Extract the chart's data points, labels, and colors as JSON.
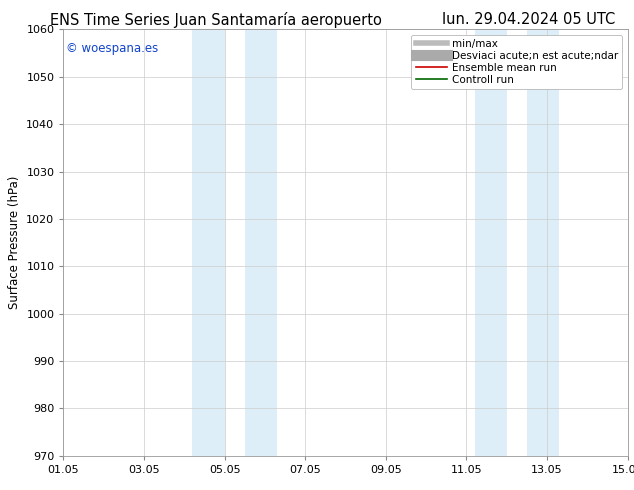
{
  "title_left": "ENS Time Series Juan Santamaría aeropuerto",
  "title_right": "lun. 29.04.2024 05 UTC",
  "ylabel": "Surface Pressure (hPa)",
  "ylim": [
    970,
    1060
  ],
  "yticks": [
    970,
    980,
    990,
    1000,
    1010,
    1020,
    1030,
    1040,
    1050,
    1060
  ],
  "xlim": [
    0,
    14
  ],
  "xtick_labels": [
    "01.05",
    "03.05",
    "05.05",
    "07.05",
    "09.05",
    "11.05",
    "13.05",
    "15.05"
  ],
  "xtick_positions": [
    0,
    2,
    4,
    6,
    8,
    10,
    12,
    14
  ],
  "shaded_regions": [
    {
      "xmin": 3.2,
      "xmax": 4.0,
      "color": "#ddeef8"
    },
    {
      "xmin": 4.5,
      "xmax": 5.3,
      "color": "#ddeef8"
    },
    {
      "xmin": 10.2,
      "xmax": 11.0,
      "color": "#ddeef8"
    },
    {
      "xmin": 11.5,
      "xmax": 12.3,
      "color": "#ddeef8"
    }
  ],
  "watermark": "© woespana.es",
  "watermark_color": "#1144cc",
  "bg_color": "#ffffff",
  "plot_bg_color": "#ffffff",
  "grid_color": "#cccccc",
  "legend_items": [
    {
      "label": "min/max",
      "color": "#bbbbbb",
      "lw": 4
    },
    {
      "label": "Desviaci acute;n est acute;ndar",
      "color": "#aaaaaa",
      "lw": 8
    },
    {
      "label": "Ensemble mean run",
      "color": "#cc0000",
      "lw": 1.2
    },
    {
      "label": "Controll run",
      "color": "#006600",
      "lw": 1.2
    }
  ],
  "title_fontsize": 10.5,
  "label_fontsize": 8.5,
  "tick_fontsize": 8,
  "watermark_fontsize": 8.5,
  "legend_fontsize": 7.5
}
